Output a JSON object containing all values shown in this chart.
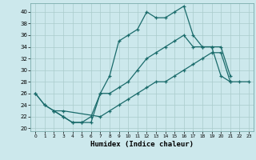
{
  "title": "",
  "xlabel": "Humidex (Indice chaleur)",
  "bg_color": "#cce8ec",
  "grid_color": "#aacccc",
  "line_color": "#1a6b6b",
  "xlim": [
    -0.5,
    23.5
  ],
  "ylim": [
    19.5,
    41.5
  ],
  "xticks": [
    0,
    1,
    2,
    3,
    4,
    5,
    6,
    7,
    8,
    9,
    10,
    11,
    12,
    13,
    14,
    15,
    16,
    17,
    18,
    19,
    20,
    21,
    22,
    23
  ],
  "yticks": [
    20,
    22,
    24,
    26,
    28,
    30,
    32,
    34,
    36,
    38,
    40
  ],
  "line1_x": [
    0,
    1,
    2,
    3,
    4,
    5,
    6,
    7,
    8,
    9,
    10,
    11,
    12,
    13,
    14,
    15,
    16,
    17,
    18,
    19,
    20,
    21
  ],
  "line1_y": [
    26,
    24,
    23,
    22,
    21,
    21,
    21,
    26,
    29,
    35,
    36,
    37,
    40,
    39,
    39,
    40,
    41,
    36,
    34,
    34,
    29,
    28
  ],
  "line2_x": [
    0,
    1,
    2,
    3,
    4,
    5,
    6,
    7,
    8,
    9,
    10,
    11,
    12,
    13,
    14,
    15,
    16,
    17,
    18,
    19,
    20,
    21
  ],
  "line2_y": [
    26,
    24,
    23,
    22,
    21,
    21,
    22,
    26,
    26,
    27,
    28,
    30,
    32,
    33,
    34,
    35,
    36,
    34,
    34,
    34,
    34,
    29
  ],
  "line3_x": [
    2,
    3,
    7,
    8,
    9,
    10,
    11,
    12,
    13,
    14,
    15,
    16,
    17,
    18,
    19,
    20,
    21,
    22,
    23
  ],
  "line3_y": [
    23,
    23,
    22,
    23,
    24,
    25,
    26,
    27,
    28,
    28,
    29,
    30,
    31,
    32,
    33,
    33,
    28,
    28,
    28
  ]
}
